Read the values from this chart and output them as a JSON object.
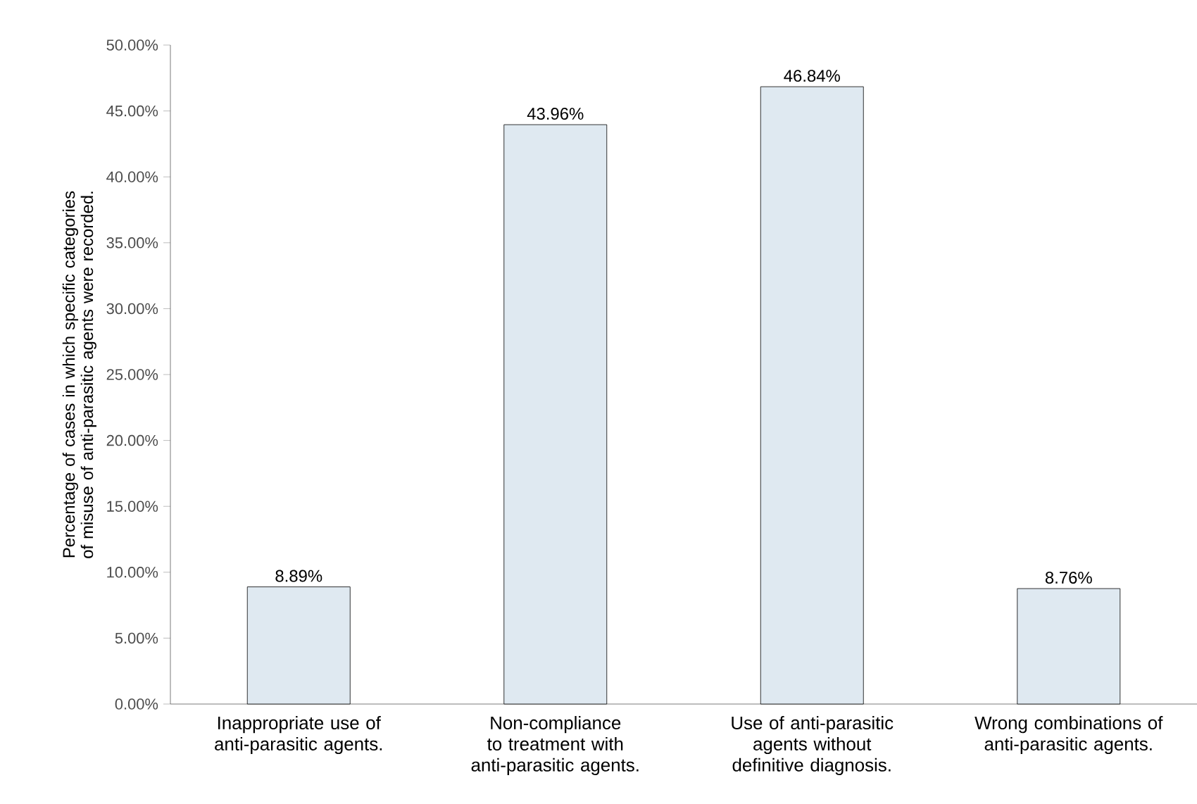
{
  "chart_data": {
    "type": "bar",
    "ylabel": "Percentage of cases in which specific categories of misuse of anti-parasitic agents were recorded.",
    "categories": [
      "Inappropriate use of anti-parasitic agents.",
      "Non-compliance to treatment with anti-parasitic agents.",
      "Use of anti-parasitic agents without definitive diagnosis.",
      "Wrong combinations of anti-parasitic agents."
    ],
    "values": [
      8.89,
      43.96,
      46.84,
      8.76
    ],
    "value_labels": [
      "8.89%",
      "43.96%",
      "46.84%",
      "8.76%"
    ],
    "color": "#dfe9f1",
    "ylim": [
      0,
      50
    ],
    "yticks": [
      {
        "value": 0,
        "label": "0.00%"
      },
      {
        "value": 5,
        "label": "5.00%"
      },
      {
        "value": 10,
        "label": "10.00%"
      },
      {
        "value": 15,
        "label": "15.00%"
      },
      {
        "value": 20,
        "label": "20.00%"
      },
      {
        "value": 25,
        "label": "25.00%"
      },
      {
        "value": 30,
        "label": "30.00%"
      },
      {
        "value": 35,
        "label": "35.00%"
      },
      {
        "value": 40,
        "label": "40.00%"
      },
      {
        "value": 45,
        "label": "45.00%"
      },
      {
        "value": 50,
        "label": "50.00%"
      }
    ],
    "grid": false
  }
}
